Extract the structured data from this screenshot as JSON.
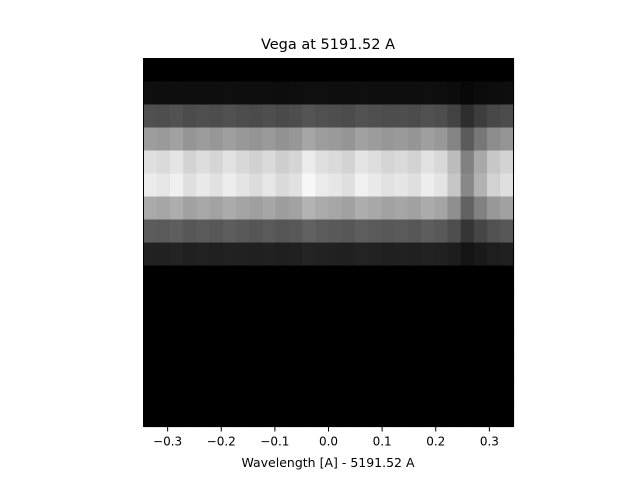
{
  "chart_data": {
    "type": "heatmap",
    "title": "Vega at 5191.52 A",
    "xlabel": "Wavelength [A] - 5191.52 A",
    "ylabel": "",
    "colormap": "gray",
    "xlim": [
      -0.345,
      0.345
    ],
    "x_ticks": [
      -0.3,
      -0.2,
      -0.1,
      0.0,
      0.1,
      0.2,
      0.3
    ],
    "x_tick_labels": [
      "−0.3",
      "−0.2",
      "−0.1",
      "0.0",
      "0.1",
      "0.2",
      "0.3"
    ],
    "y_ticks_visible": false,
    "n_columns": 28,
    "n_rows": 16,
    "row_profile": [
      0.0,
      0.06,
      0.33,
      0.65,
      0.92,
      0.97,
      0.7,
      0.38,
      0.14,
      0.0,
      0.0,
      0.0,
      0.0,
      0.0,
      0.0,
      0.0
    ],
    "column_profile": [
      0.95,
      0.93,
      0.97,
      0.9,
      0.94,
      0.91,
      0.96,
      0.92,
      0.89,
      0.93,
      0.88,
      0.91,
      1.0,
      0.95,
      0.93,
      0.9,
      0.97,
      0.94,
      0.91,
      0.93,
      0.9,
      0.96,
      0.92,
      0.8,
      0.55,
      0.72,
      0.85,
      0.9
    ]
  }
}
